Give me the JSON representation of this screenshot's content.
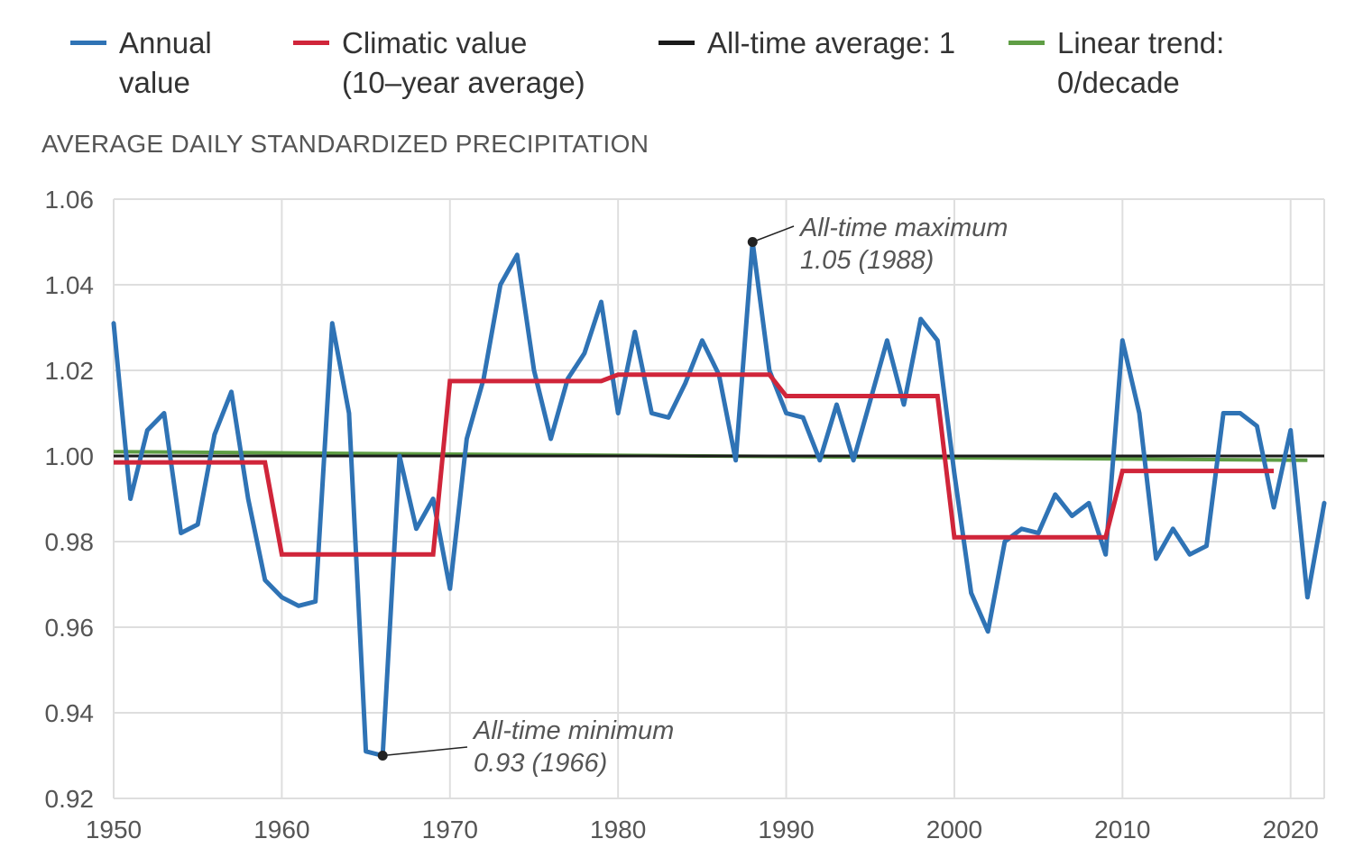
{
  "colors": {
    "annual": "#2f73b5",
    "climatic": "#d0253a",
    "average": "#1a1a1a",
    "trend": "#5f9e45",
    "grid": "#dedede"
  },
  "legend": [
    {
      "key": "annual",
      "text": "Annual\nvalue"
    },
    {
      "key": "climatic",
      "text": "Climatic value\n(10–year average)"
    },
    {
      "key": "average",
      "text": "All-time average: 1"
    },
    {
      "key": "trend",
      "text": "Linear trend:\n0/decade"
    }
  ],
  "chart_data": {
    "type": "line",
    "title": "AVERAGE DAILY STANDARDIZED PRECIPITATION",
    "xlim": [
      1950,
      2022
    ],
    "ylim": [
      0.92,
      1.06
    ],
    "grid": true,
    "legend_position": "top",
    "x_ticks": [
      1950,
      1960,
      1970,
      1980,
      1990,
      2000,
      2010,
      2020
    ],
    "y_ticks": [
      "0.92",
      "0.94",
      "0.96",
      "0.98",
      "1.00",
      "1.02",
      "1.04",
      "1.06"
    ],
    "series": [
      {
        "name": "Annual value",
        "x": [
          1950,
          1951,
          1952,
          1953,
          1954,
          1955,
          1956,
          1957,
          1958,
          1959,
          1960,
          1961,
          1962,
          1963,
          1964,
          1965,
          1966,
          1967,
          1968,
          1969,
          1970,
          1971,
          1972,
          1973,
          1974,
          1975,
          1976,
          1977,
          1978,
          1979,
          1980,
          1981,
          1982,
          1983,
          1984,
          1985,
          1986,
          1987,
          1988,
          1989,
          1990,
          1991,
          1992,
          1993,
          1994,
          1995,
          1996,
          1997,
          1998,
          1999,
          2000,
          2001,
          2002,
          2003,
          2004,
          2005,
          2006,
          2007,
          2008,
          2009,
          2010,
          2011,
          2012,
          2013,
          2014,
          2015,
          2016,
          2017,
          2018,
          2019,
          2020,
          2021,
          2022
        ],
        "values": [
          1.031,
          0.99,
          1.006,
          1.01,
          0.982,
          0.984,
          1.005,
          1.015,
          0.99,
          0.971,
          0.967,
          0.965,
          0.966,
          1.031,
          1.01,
          0.931,
          0.93,
          1.0,
          0.983,
          0.99,
          0.969,
          1.004,
          1.018,
          1.04,
          1.047,
          1.02,
          1.004,
          1.018,
          1.024,
          1.036,
          1.01,
          1.029,
          1.01,
          1.009,
          1.017,
          1.027,
          1.019,
          0.999,
          1.05,
          1.02,
          1.01,
          1.009,
          0.999,
          1.012,
          0.999,
          1.013,
          1.027,
          1.012,
          1.032,
          1.027,
          0.996,
          0.968,
          0.959,
          0.98,
          0.983,
          0.982,
          0.991,
          0.986,
          0.989,
          0.977,
          1.027,
          1.01,
          0.976,
          0.983,
          0.977,
          0.979,
          1.01,
          1.01,
          1.007,
          0.988,
          1.006,
          0.967,
          0.989
        ]
      },
      {
        "name": "Climatic value (10–year average)",
        "steps": [
          {
            "from": 1950,
            "to": 1959,
            "value": 0.9985
          },
          {
            "from": 1960,
            "to": 1969,
            "value": 0.977
          },
          {
            "from": 1970,
            "to": 1979,
            "value": 1.0175
          },
          {
            "from": 1980,
            "to": 1989,
            "value": 1.019
          },
          {
            "from": 1990,
            "to": 1999,
            "value": 1.014
          },
          {
            "from": 2000,
            "to": 2009,
            "value": 0.981
          },
          {
            "from": 2010,
            "to": 2019,
            "value": 0.9965
          }
        ]
      },
      {
        "name": "All-time average: 1",
        "x": [
          1950,
          2022
        ],
        "values": [
          1.0,
          1.0
        ]
      },
      {
        "name": "Linear trend: 0/decade",
        "x": [
          1950,
          2021
        ],
        "values": [
          1.001,
          0.999
        ]
      }
    ],
    "annotations": [
      {
        "key": "max",
        "label": "All-time maximum",
        "value_text": "1.05 (1988)",
        "x": 1988,
        "y": 1.05
      },
      {
        "key": "min",
        "label": "All-time minimum",
        "value_text": "0.93 (1966)",
        "x": 1966,
        "y": 0.93
      }
    ]
  }
}
